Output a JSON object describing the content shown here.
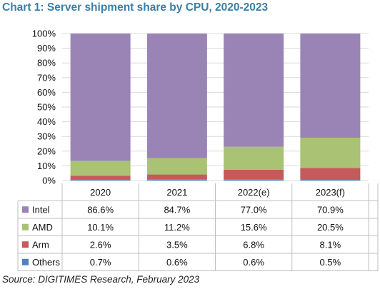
{
  "header": {
    "title": "Chart 1: Server shipment share by CPU, 2020-2023"
  },
  "footer": {
    "source": "Source: DIGITIMES Research, February 2023"
  },
  "chart_data": {
    "type": "bar",
    "stacked": true,
    "categories": [
      "2020",
      "2021",
      "2022(e)",
      "2023(f)"
    ],
    "yticks": [
      "0%",
      "10%",
      "20%",
      "30%",
      "40%",
      "50%",
      "60%",
      "70%",
      "80%",
      "90%",
      "100%"
    ],
    "ylim": [
      0,
      100
    ],
    "series": [
      {
        "name": "Intel",
        "color": "#9a84b6",
        "values": [
          86.6,
          84.7,
          77.0,
          70.9
        ],
        "labels": [
          "86.6%",
          "84.7%",
          "77.0%",
          "70.9%"
        ]
      },
      {
        "name": "AMD",
        "color": "#a9c274",
        "values": [
          10.1,
          11.2,
          15.6,
          20.5
        ],
        "labels": [
          "10.1%",
          "11.2%",
          "15.6%",
          "20.5%"
        ]
      },
      {
        "name": "Arm",
        "color": "#c55a5a",
        "values": [
          2.6,
          3.5,
          6.8,
          8.1
        ],
        "labels": [
          "2.6%",
          "3.5%",
          "6.8%",
          "8.1%"
        ]
      },
      {
        "name": "Others",
        "color": "#4f81bd",
        "values": [
          0.7,
          0.6,
          0.6,
          0.5
        ],
        "labels": [
          "0.7%",
          "0.6%",
          "0.6%",
          "0.5%"
        ]
      }
    ]
  }
}
